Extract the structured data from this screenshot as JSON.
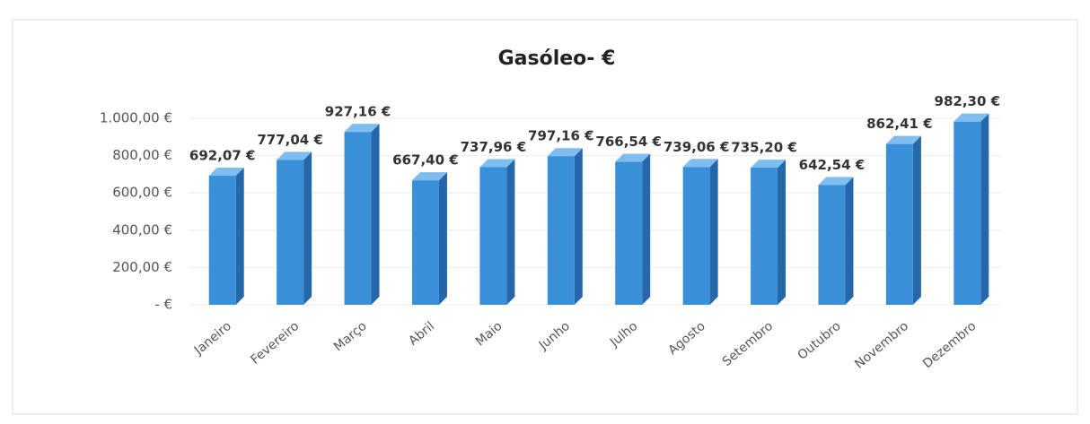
{
  "chart_data": {
    "type": "bar3d",
    "title": "Gasóleo- €",
    "categories": [
      "Janeiro",
      "Fevereiro",
      "Março",
      "Abril",
      "Maio",
      "Junho",
      "Julho",
      "Agosto",
      "Setembro",
      "Outubro",
      "Novembro",
      "Dezembro"
    ],
    "values": [
      692.07,
      777.04,
      927.16,
      667.4,
      737.96,
      797.16,
      766.54,
      739.06,
      735.2,
      642.54,
      862.41,
      982.3
    ],
    "value_labels": [
      "692,07 €",
      "777,04 €",
      "927,16 €",
      "667,40 €",
      "737,96 €",
      "797,16 €",
      "766,54 €",
      "739,06 €",
      "735,20 €",
      "642,54 €",
      "862,41 €",
      "982,30 €"
    ],
    "color": "#3a8fd9",
    "ylim": [
      0,
      1000
    ],
    "yticks": [
      {
        "value": 0,
        "label": "- €"
      },
      {
        "value": 200,
        "label": "200,00 €"
      },
      {
        "value": 400,
        "label": "400,00 €"
      },
      {
        "value": 600,
        "label": "600,00 €"
      },
      {
        "value": 800,
        "label": "800,00 €"
      },
      {
        "value": 1000,
        "label": "1.000,00 €"
      }
    ],
    "grid": true
  }
}
